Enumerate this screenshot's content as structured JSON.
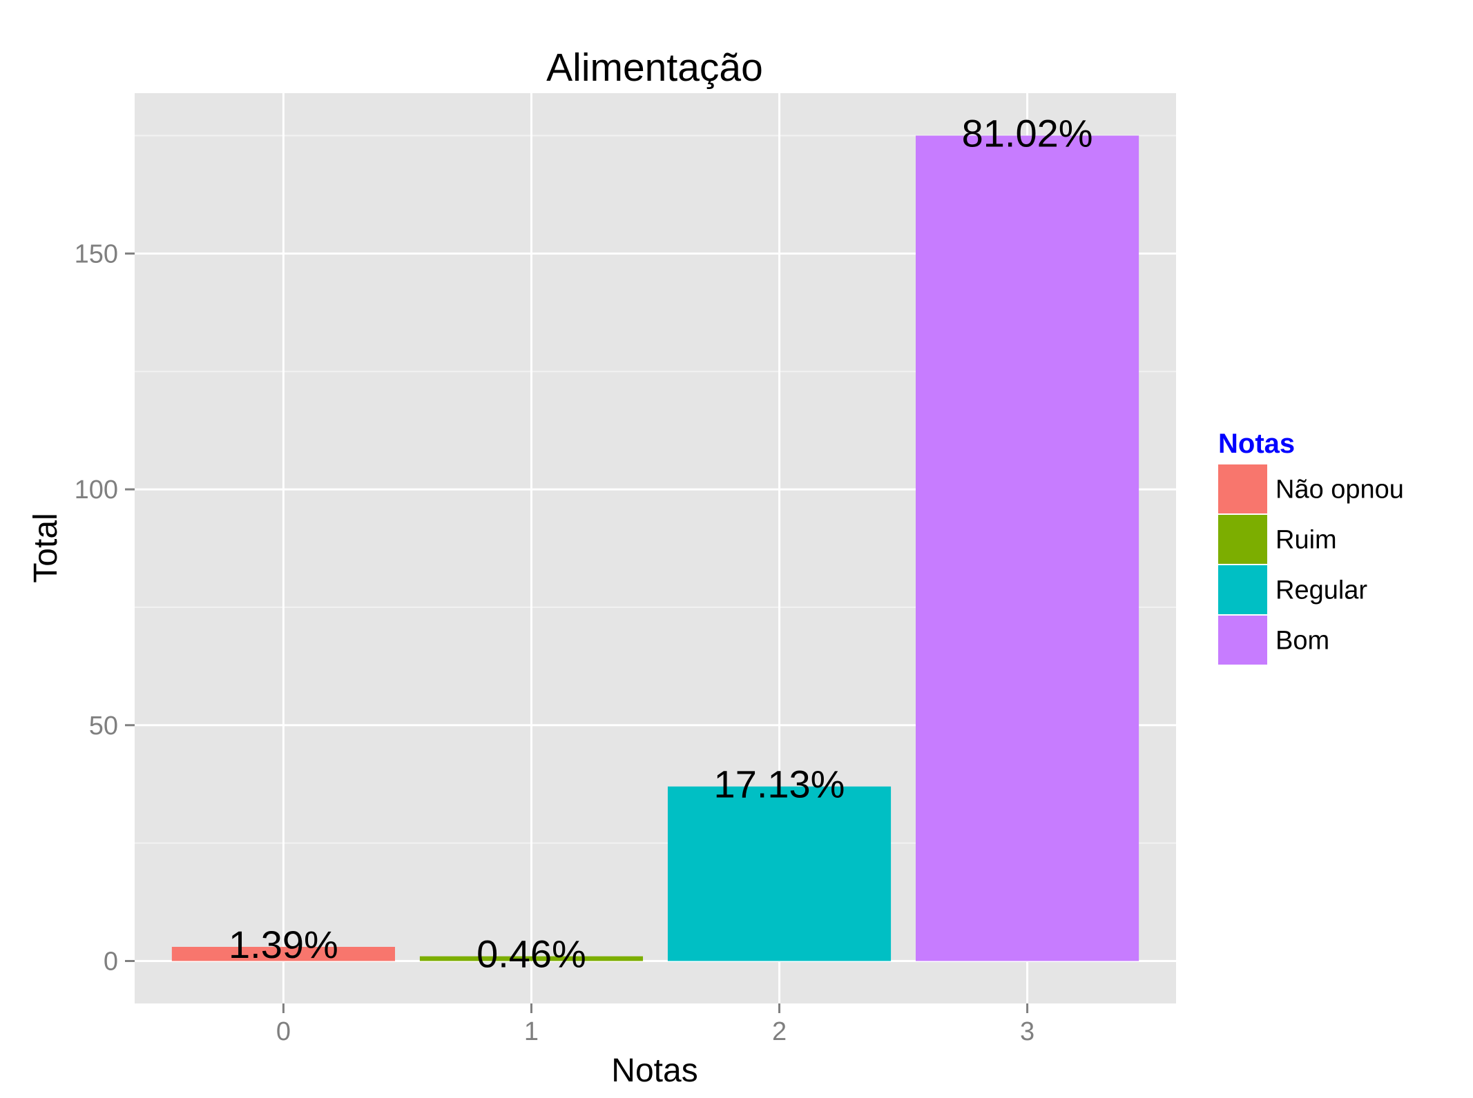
{
  "chart_data": {
    "type": "bar",
    "title": "Alimentação",
    "xlabel": "Notas",
    "ylabel": "Total",
    "categories": [
      "0",
      "1",
      "2",
      "3"
    ],
    "values": [
      3,
      1,
      37,
      175
    ],
    "data_labels": [
      "1.39%",
      "0.46%",
      "17.13%",
      "81.02%"
    ],
    "series_names": [
      "Não opnou",
      "Ruim",
      "Regular",
      "Bom"
    ],
    "colors": [
      "#F8766D",
      "#7CAE00",
      "#00BFC4",
      "#C77CFF"
    ],
    "ylim": [
      -9,
      184
    ],
    "yticks": [
      0,
      50,
      100,
      150
    ],
    "grid": true,
    "legend": {
      "title": "Notas",
      "title_color": "#0000FF",
      "placement": "right"
    },
    "panel_background": "#E5E5E5",
    "grid_color": "#FFFFFF"
  }
}
